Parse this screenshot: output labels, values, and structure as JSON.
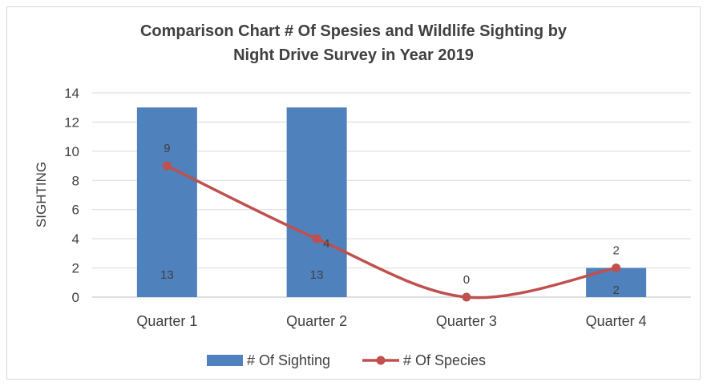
{
  "chart_data": {
    "type": "bar",
    "title_line1": "Comparison Chart # Of Spesies and Wildlife Sighting by",
    "title_line2": "Night Drive Survey in Year 2019",
    "xlabel": "",
    "ylabel": "SIGHTING",
    "ylim": [
      0,
      14
    ],
    "yticks": [
      "0",
      "2",
      "4",
      "6",
      "8",
      "10",
      "12",
      "14"
    ],
    "grid": true,
    "legend_position": "bottom",
    "categories": [
      "Quarter 1",
      "Quarter 2",
      "Quarter 3",
      "Quarter 4"
    ],
    "series": [
      {
        "name": "# Of Sighting",
        "type": "bar",
        "color": "#4f81bd",
        "values": [
          13,
          13,
          0,
          2
        ],
        "labels": [
          "13",
          "13",
          "",
          "2"
        ]
      },
      {
        "name": "# Of Species",
        "type": "line",
        "color": "#c0504d",
        "values": [
          9,
          4,
          0,
          2
        ],
        "labels": [
          "9",
          "4",
          "0",
          "2"
        ]
      }
    ]
  }
}
